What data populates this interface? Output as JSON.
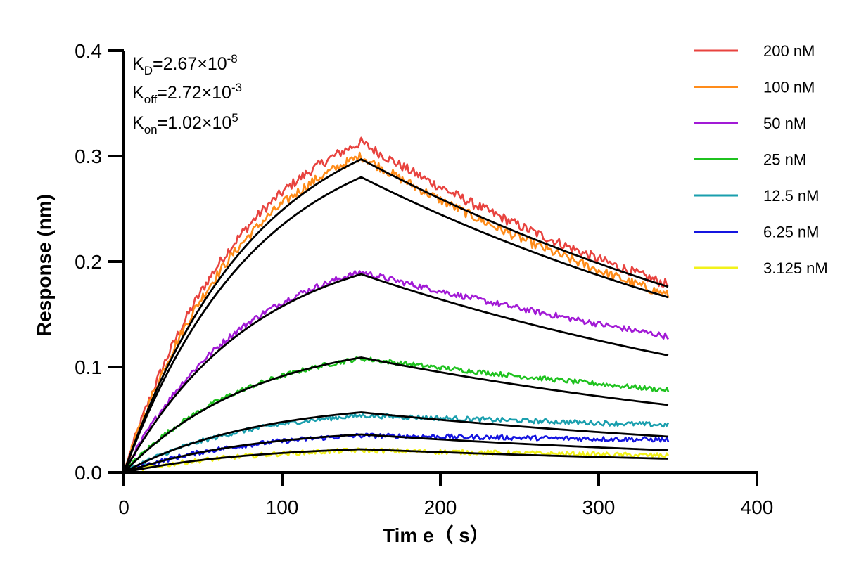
{
  "chart_data": {
    "type": "line",
    "xlabel": "Tim e（ s）",
    "ylabel": "Response (nm)",
    "xlim": [
      0,
      400
    ],
    "ylim": [
      0,
      0.4
    ],
    "x_ticks": [
      0,
      100,
      200,
      300,
      400
    ],
    "x_tick_labels": [
      "0",
      "100",
      "200",
      "300",
      "400"
    ],
    "y_ticks": [
      0,
      0.1,
      0.2,
      0.3,
      0.4
    ],
    "y_tick_labels": [
      "0.0",
      "0.1",
      "0.2",
      "0.3",
      "0.4"
    ],
    "grid": false,
    "legend_position": "top-right",
    "association_end_s": 150,
    "end_s": 344,
    "annotations": {
      "kd": {
        "base": "K",
        "sub": "D",
        "rest": "=2.67×10",
        "sup": "-8"
      },
      "koff": {
        "base": "K",
        "sub": "off",
        "rest": "=2.72×10",
        "sup": "-3"
      },
      "kon": {
        "base": "K",
        "sub": "on",
        "rest": "=1.02×10",
        "sup": "5"
      }
    },
    "fit_color": "#000000",
    "series": [
      {
        "name": "200 nM",
        "color": "#e8433f",
        "fit_peak": 0.297,
        "fit_end": 0.176,
        "obs_peak": 0.313,
        "obs_end": 0.178
      },
      {
        "name": "100 nM",
        "color": "#ff8c1a",
        "fit_peak": 0.28,
        "fit_end": 0.166,
        "obs_peak": 0.3,
        "obs_end": 0.168
      },
      {
        "name": "50 nM",
        "color": "#a21ad6",
        "fit_peak": 0.188,
        "fit_end": 0.111,
        "obs_peak": 0.19,
        "obs_end": 0.129
      },
      {
        "name": "25 nM",
        "color": "#1fc21f",
        "fit_peak": 0.109,
        "fit_end": 0.064,
        "obs_peak": 0.108,
        "obs_end": 0.078
      },
      {
        "name": "12.5 nM",
        "color": "#1a9fae",
        "fit_peak": 0.057,
        "fit_end": 0.034,
        "obs_peak": 0.054,
        "obs_end": 0.045
      },
      {
        "name": "6.25 nM",
        "color": "#1515e0",
        "fit_peak": 0.036,
        "fit_end": 0.021,
        "obs_peak": 0.035,
        "obs_end": 0.031
      },
      {
        "name": "3.125 nM",
        "color": "#f2f21a",
        "fit_peak": 0.022,
        "fit_end": 0.013,
        "obs_peak": 0.021,
        "obs_end": 0.016
      }
    ]
  }
}
